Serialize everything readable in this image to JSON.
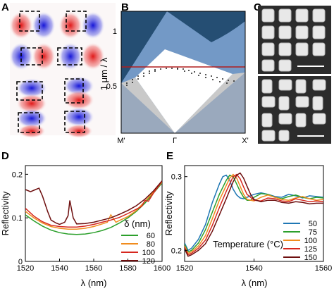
{
  "panels": {
    "A": {
      "label": "A"
    },
    "B": {
      "label": "B",
      "ylabel": "1 μm / λ",
      "yticks": [
        "0.5",
        "1"
      ],
      "xticks": [
        "M'",
        "Γ",
        "X'"
      ],
      "colors": {
        "dark": "#254e73",
        "mid": "#7399c6",
        "light": "#cdd7e6",
        "gray": "#c9c9c9",
        "bottom": "#9aa9bd",
        "line": "#b01e1e"
      }
    },
    "C": {
      "label": "C"
    },
    "D": {
      "label": "D"
    },
    "E": {
      "label": "E"
    }
  },
  "chart_data": [
    {
      "type": "line",
      "panel": "D",
      "xlabel": "λ (nm)",
      "ylabel": "Reflectivity",
      "legend_title": "δ (nm)",
      "xlim": [
        1520,
        1600
      ],
      "ylim": [
        0.0,
        0.22
      ],
      "xticks": [
        "1520",
        "1540",
        "1560",
        "1580",
        "1600"
      ],
      "yticks": [
        "0",
        "0.1",
        "0.2"
      ],
      "series": [
        {
          "name": "60",
          "color": "#2ca02c",
          "x": [
            1520,
            1525,
            1530,
            1535,
            1540,
            1545,
            1550,
            1555,
            1560,
            1565,
            1570,
            1575,
            1580,
            1585,
            1590,
            1595,
            1600
          ],
          "y": [
            0.107,
            0.093,
            0.081,
            0.072,
            0.066,
            0.063,
            0.062,
            0.063,
            0.066,
            0.071,
            0.078,
            0.088,
            0.1,
            0.115,
            0.134,
            0.157,
            0.18
          ]
        },
        {
          "name": "80",
          "color": "#f08c1e",
          "x": [
            1520,
            1525,
            1530,
            1535,
            1540,
            1545,
            1550,
            1555,
            1560,
            1565,
            1568,
            1570,
            1573,
            1575,
            1580,
            1585,
            1590,
            1595,
            1600
          ],
          "y": [
            0.115,
            0.1,
            0.088,
            0.08,
            0.076,
            0.074,
            0.074,
            0.076,
            0.08,
            0.086,
            0.09,
            0.107,
            0.09,
            0.094,
            0.103,
            0.117,
            0.138,
            0.16,
            0.182
          ]
        },
        {
          "name": "100",
          "color": "#d6271f",
          "x": [
            1520,
            1525,
            1530,
            1535,
            1540,
            1545,
            1550,
            1555,
            1560,
            1565,
            1570,
            1575,
            1580,
            1585,
            1588,
            1590,
            1592,
            1595,
            1600
          ],
          "y": [
            0.122,
            0.104,
            0.091,
            0.083,
            0.08,
            0.079,
            0.079,
            0.081,
            0.085,
            0.09,
            0.095,
            0.101,
            0.11,
            0.12,
            0.126,
            0.14,
            0.138,
            0.157,
            0.184
          ]
        },
        {
          "name": "120",
          "color": "#6e0f0f",
          "x": [
            1520,
            1523,
            1526,
            1528,
            1530,
            1533,
            1535,
            1538,
            1540,
            1543,
            1545,
            1546,
            1548,
            1550,
            1555,
            1560,
            1565,
            1570,
            1575,
            1580,
            1585,
            1590,
            1595,
            1600
          ],
          "y": [
            0.165,
            0.16,
            0.165,
            0.168,
            0.15,
            0.115,
            0.095,
            0.088,
            0.085,
            0.09,
            0.105,
            0.14,
            0.1,
            0.086,
            0.087,
            0.09,
            0.095,
            0.1,
            0.108,
            0.117,
            0.128,
            0.143,
            0.162,
            0.185
          ]
        }
      ]
    },
    {
      "type": "line",
      "panel": "E",
      "xlabel": "λ (nm)",
      "ylabel": "Reflectivity",
      "legend_title": "Temperature (°C)",
      "xlim": [
        1520,
        1560
      ],
      "ylim": [
        0.185,
        0.315
      ],
      "xticks": [
        "1520",
        "1540",
        "1560"
      ],
      "yticks": [
        "0.2",
        "0.3"
      ],
      "series": [
        {
          "name": "50",
          "color": "#1f77b4",
          "x": [
            1520,
            1521,
            1522,
            1524,
            1526,
            1528,
            1530,
            1531,
            1532,
            1533,
            1534,
            1535,
            1536,
            1537,
            1538,
            1540,
            1542,
            1544,
            1546,
            1548,
            1550,
            1552,
            1554,
            1556,
            1558,
            1560
          ],
          "y": [
            0.21,
            0.2,
            0.203,
            0.215,
            0.235,
            0.265,
            0.29,
            0.3,
            0.302,
            0.295,
            0.283,
            0.275,
            0.271,
            0.27,
            0.272,
            0.276,
            0.278,
            0.276,
            0.273,
            0.272,
            0.276,
            0.274,
            0.271,
            0.274,
            0.273,
            0.272
          ]
        },
        {
          "name": "75",
          "color": "#2ca02c",
          "x": [
            1520,
            1521,
            1522,
            1524,
            1526,
            1528,
            1530,
            1532,
            1533,
            1534,
            1535,
            1536,
            1537,
            1538,
            1539,
            1540,
            1542,
            1544,
            1546,
            1548,
            1550,
            1552,
            1554,
            1556,
            1558,
            1560
          ],
          "y": [
            0.208,
            0.198,
            0.2,
            0.21,
            0.228,
            0.252,
            0.276,
            0.295,
            0.302,
            0.3,
            0.29,
            0.28,
            0.272,
            0.268,
            0.268,
            0.272,
            0.277,
            0.276,
            0.272,
            0.27,
            0.273,
            0.275,
            0.272,
            0.27,
            0.272,
            0.271
          ]
        },
        {
          "name": "100",
          "color": "#f08c1e",
          "x": [
            1520,
            1521,
            1522,
            1524,
            1526,
            1528,
            1530,
            1532,
            1533,
            1534,
            1535,
            1536,
            1537,
            1538,
            1540,
            1542,
            1544,
            1546,
            1548,
            1550,
            1552,
            1554,
            1556,
            1558,
            1560
          ],
          "y": [
            0.206,
            0.196,
            0.198,
            0.206,
            0.22,
            0.243,
            0.268,
            0.288,
            0.298,
            0.303,
            0.298,
            0.287,
            0.276,
            0.269,
            0.267,
            0.272,
            0.275,
            0.272,
            0.269,
            0.268,
            0.271,
            0.273,
            0.27,
            0.268,
            0.269
          ]
        },
        {
          "name": "125",
          "color": "#d6271f",
          "x": [
            1520,
            1521,
            1522,
            1524,
            1526,
            1528,
            1530,
            1532,
            1534,
            1535,
            1536,
            1537,
            1538,
            1540,
            1542,
            1544,
            1546,
            1548,
            1550,
            1552,
            1554,
            1556,
            1558,
            1560
          ],
          "y": [
            0.204,
            0.194,
            0.196,
            0.203,
            0.214,
            0.234,
            0.258,
            0.28,
            0.3,
            0.303,
            0.297,
            0.286,
            0.276,
            0.268,
            0.267,
            0.271,
            0.27,
            0.267,
            0.266,
            0.27,
            0.268,
            0.266,
            0.267,
            0.266
          ]
        },
        {
          "name": "150",
          "color": "#6e0f0f",
          "x": [
            1520,
            1521,
            1522,
            1524,
            1526,
            1528,
            1530,
            1532,
            1534,
            1535,
            1536,
            1537,
            1538,
            1539,
            1540,
            1542,
            1544,
            1546,
            1548,
            1550,
            1552,
            1554,
            1556,
            1558,
            1560
          ],
          "y": [
            0.202,
            0.192,
            0.194,
            0.2,
            0.209,
            0.226,
            0.248,
            0.27,
            0.293,
            0.302,
            0.305,
            0.298,
            0.287,
            0.276,
            0.269,
            0.266,
            0.268,
            0.268,
            0.265,
            0.264,
            0.266,
            0.265,
            0.263,
            0.264,
            0.264
          ]
        }
      ]
    }
  ]
}
